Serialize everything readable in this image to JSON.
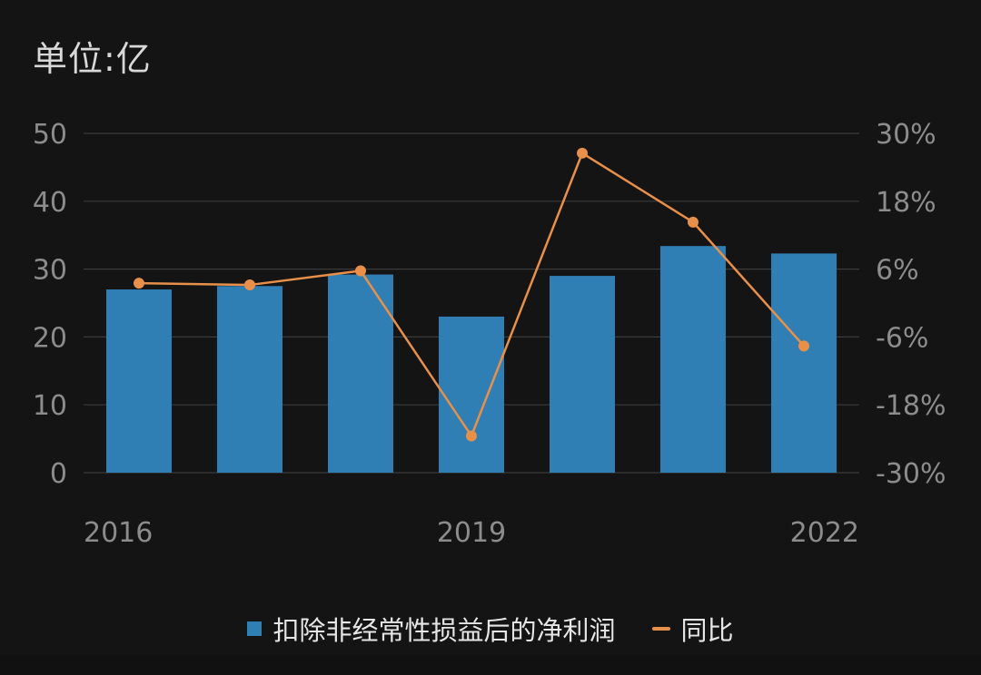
{
  "unit_label": "单位:亿",
  "colors": {
    "bar": "#2f7fb4",
    "line": "#e8904a",
    "axis_text": "#8c8c8c",
    "grid": "#3a3a3a"
  },
  "chart_data": {
    "type": "bar",
    "categories": [
      "2016",
      "2017",
      "2018",
      "2019",
      "2020",
      "2021",
      "2022"
    ],
    "x_tick_labels": [
      "2016",
      "",
      "",
      "2019",
      "",
      "",
      "2022"
    ],
    "series": [
      {
        "name": "扣除非经常性损益后的净利润",
        "type": "bar",
        "axis": "left",
        "values": [
          27,
          27.5,
          29.2,
          23,
          29,
          33.4,
          32.3
        ]
      },
      {
        "name": "同比",
        "type": "line",
        "axis": "right",
        "values": [
          3.5,
          3.2,
          5.7,
          -23.5,
          26.5,
          14.3,
          -7.6
        ]
      }
    ],
    "ylim": [
      0,
      50
    ],
    "y_ticks": [
      0,
      10,
      20,
      30,
      40,
      50
    ],
    "y_tick_labels": [
      "0",
      "10",
      "20",
      "30",
      "40",
      "50"
    ],
    "y2lim": [
      -30,
      30
    ],
    "y2_ticks": [
      -30,
      -18,
      -6,
      6,
      18,
      30
    ],
    "y2_tick_labels": [
      "-30%",
      "-18%",
      "-6%",
      "6%",
      "18%",
      "30%"
    ],
    "grid": true,
    "legend_position": "bottom"
  }
}
